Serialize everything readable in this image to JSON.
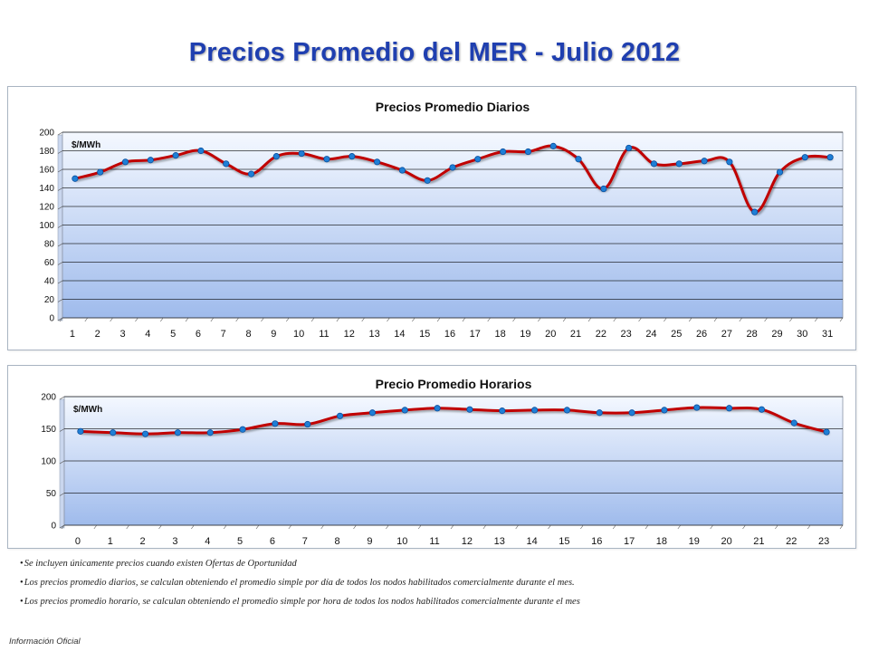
{
  "page": {
    "title": "Precios Promedio del MER - Julio 2012",
    "colors": {
      "title": "#1f3fb0",
      "line": "#c00000",
      "marker": "#1f7fd6",
      "plot_top": "#f4f8ff",
      "plot_bottom": "#9fbbec",
      "grid": "#000000"
    }
  },
  "chart_data": [
    {
      "type": "line",
      "title": "Precios Promedio Diarios",
      "ylabel": "$/MWh",
      "xlabel": "",
      "categories": [
        "1",
        "2",
        "3",
        "4",
        "5",
        "6",
        "7",
        "8",
        "9",
        "10",
        "11",
        "12",
        "13",
        "14",
        "15",
        "16",
        "17",
        "18",
        "19",
        "20",
        "21",
        "22",
        "23",
        "24",
        "25",
        "26",
        "27",
        "28",
        "29",
        "30",
        "31"
      ],
      "series": [
        {
          "values": [
            150,
            157,
            168,
            170,
            175,
            180,
            166,
            155,
            174,
            177,
            171,
            174,
            168,
            159,
            148,
            162,
            171,
            179,
            179,
            185,
            171,
            139,
            183,
            166,
            166,
            169,
            168,
            114,
            157,
            173,
            173
          ]
        }
      ],
      "ylim": [
        0,
        200
      ],
      "yticks": [
        0,
        20,
        40,
        60,
        80,
        100,
        120,
        140,
        160,
        180,
        200
      ],
      "grid": true,
      "smooth": true
    },
    {
      "type": "line",
      "title": "Precio Promedio Horarios",
      "ylabel": "$/MWh",
      "xlabel": "",
      "categories": [
        "0",
        "1",
        "2",
        "3",
        "4",
        "5",
        "6",
        "7",
        "8",
        "9",
        "10",
        "11",
        "12",
        "13",
        "14",
        "15",
        "16",
        "17",
        "18",
        "19",
        "20",
        "21",
        "22",
        "23"
      ],
      "series": [
        {
          "values": [
            146,
            144,
            142,
            144,
            144,
            149,
            158,
            157,
            170,
            175,
            179,
            182,
            180,
            178,
            179,
            179,
            175,
            175,
            179,
            183,
            182,
            180,
            159,
            145
          ]
        }
      ],
      "ylim": [
        0,
        200
      ],
      "yticks": [
        0,
        50,
        100,
        150,
        200
      ],
      "grid": true,
      "smooth": true
    }
  ],
  "notes": [
    "Se incluyen únicamente precios cuando existen Ofertas de Oportunidad",
    "Los precios promedio diarios, se calculan obteniendo el promedio simple por día  de todos los nodos habilitados comercialmente durante  el mes.",
    "Los precios promedio horario, se calculan obteniendo el promedio simple por hora de todos los nodos habilitados comercialmente durante  el mes"
  ],
  "footer": "Información Oficial"
}
